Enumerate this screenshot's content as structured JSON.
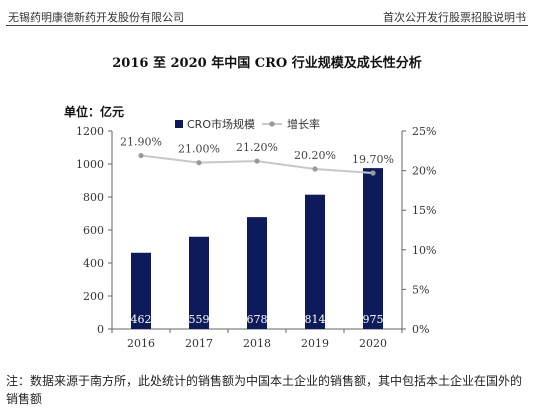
{
  "header": {
    "company": "无锡药明康德新药开发股份有限公司",
    "doc_title": "首次公开发行股票招股说明书"
  },
  "chart_data": {
    "type": "bar",
    "title": "2016 至 2020 年中国 CRO 行业规模及成长性分析",
    "unit_label": "单位：亿元",
    "categories": [
      "2016",
      "2017",
      "2018",
      "2019",
      "2020"
    ],
    "series": [
      {
        "name": "CRO市场规模",
        "type": "bar",
        "axis": "left",
        "color": "#0d1b5c",
        "values": [
          462,
          559,
          678,
          814,
          975
        ]
      },
      {
        "name": "增长率",
        "type": "line",
        "axis": "right",
        "color": "#c8c8c8",
        "values": [
          21.9,
          21.0,
          21.2,
          20.2,
          19.7
        ],
        "labels": [
          "21.90%",
          "21.00%",
          "21.20%",
          "20.20%",
          "19.70%"
        ]
      }
    ],
    "ylim": [
      0,
      1200
    ],
    "yticks": [
      0,
      200,
      400,
      600,
      800,
      1000,
      1200
    ],
    "y2lim": [
      0,
      25
    ],
    "y2ticks": [
      "0%",
      "5%",
      "10%",
      "15%",
      "20%",
      "25%"
    ],
    "legend_position": "top-center",
    "grid": false
  },
  "footnote": "注：数据来源于南方所，此处统计的销售额为中国本土企业的销售额，其中包括本土企业在国外的销售额"
}
